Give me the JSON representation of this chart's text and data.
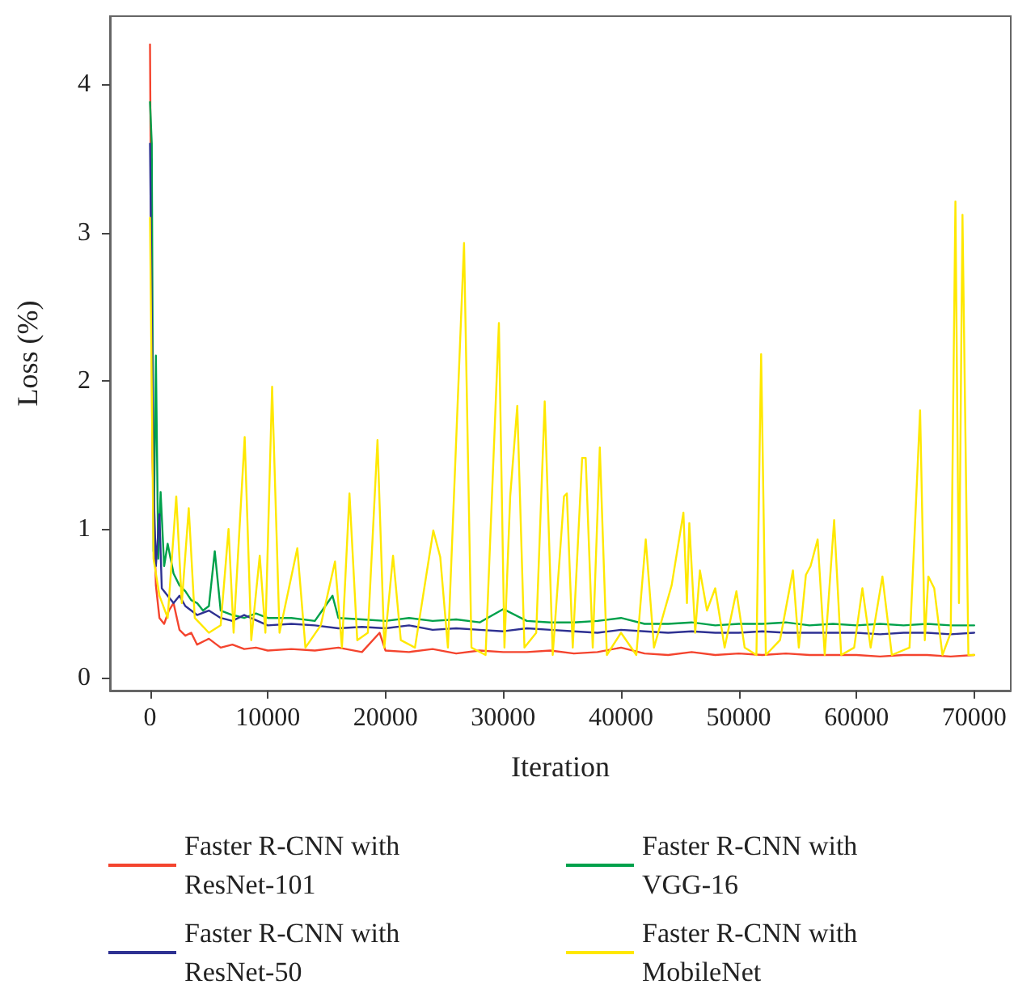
{
  "chart_data": {
    "type": "line",
    "xlabel": "Iteration",
    "ylabel": "Loss (%)",
    "xlim": [
      -3400,
      73100
    ],
    "ylim": [
      -0.09,
      4.46
    ],
    "xticks": [
      0,
      10000,
      20000,
      30000,
      40000,
      50000,
      60000,
      70000
    ],
    "yticks": [
      0,
      1,
      2,
      3,
      4
    ],
    "grid": false,
    "legend": "bottom",
    "marker": "none",
    "line_style": "solid",
    "series": [
      {
        "name": "Faster R-CNN with ResNet-101",
        "color": "#f4442e",
        "x": [
          0,
          200,
          500,
          800,
          1200,
          1600,
          2000,
          2500,
          3000,
          3500,
          4000,
          5000,
          6000,
          7000,
          8000,
          9000,
          10000,
          12000,
          14000,
          16000,
          18000,
          19500,
          20000,
          22000,
          24000,
          26000,
          28000,
          30000,
          32000,
          34000,
          36000,
          38000,
          40000,
          42000,
          44000,
          46000,
          48000,
          50000,
          52000,
          54000,
          56000,
          58000,
          60000,
          62000,
          64000,
          66000,
          68000,
          70000
        ],
        "values": [
          4.27,
          1.5,
          0.62,
          0.4,
          0.36,
          0.45,
          0.5,
          0.32,
          0.28,
          0.3,
          0.22,
          0.26,
          0.2,
          0.22,
          0.19,
          0.2,
          0.18,
          0.19,
          0.18,
          0.2,
          0.17,
          0.3,
          0.18,
          0.17,
          0.19,
          0.16,
          0.18,
          0.17,
          0.17,
          0.18,
          0.16,
          0.17,
          0.2,
          0.16,
          0.15,
          0.17,
          0.15,
          0.16,
          0.15,
          0.16,
          0.15,
          0.15,
          0.15,
          0.14,
          0.15,
          0.15,
          0.14,
          0.15
        ]
      },
      {
        "name": "Faster R-CNN with VGG-16",
        "color": "#00a14b",
        "x": [
          0,
          150,
          300,
          500,
          700,
          900,
          1200,
          1500,
          2000,
          2500,
          3000,
          3500,
          4000,
          4500,
          5000,
          5500,
          6000,
          7000,
          8000,
          9000,
          10000,
          12000,
          14000,
          15500,
          16000,
          18000,
          20000,
          22000,
          24000,
          26000,
          28000,
          30000,
          32000,
          34000,
          36000,
          38000,
          40000,
          42000,
          44000,
          46000,
          48000,
          50000,
          52000,
          54000,
          56000,
          58000,
          60000,
          62000,
          64000,
          66000,
          68000,
          70000
        ],
        "values": [
          3.88,
          3.6,
          0.85,
          2.17,
          0.8,
          1.25,
          0.75,
          0.9,
          0.7,
          0.62,
          0.58,
          0.52,
          0.5,
          0.45,
          0.48,
          0.85,
          0.45,
          0.42,
          0.4,
          0.43,
          0.4,
          0.4,
          0.38,
          0.55,
          0.4,
          0.39,
          0.38,
          0.4,
          0.38,
          0.39,
          0.37,
          0.46,
          0.38,
          0.37,
          0.37,
          0.38,
          0.4,
          0.36,
          0.36,
          0.37,
          0.35,
          0.36,
          0.36,
          0.37,
          0.35,
          0.36,
          0.35,
          0.36,
          0.35,
          0.36,
          0.35,
          0.35
        ]
      },
      {
        "name": "Faster R-CNN with ResNet-50",
        "color": "#2e3192",
        "x": [
          0,
          300,
          500,
          800,
          1000,
          1500,
          2000,
          2500,
          3000,
          4000,
          5000,
          6000,
          7000,
          8000,
          10000,
          12000,
          14000,
          16000,
          18000,
          20000,
          22000,
          24000,
          26000,
          28000,
          30000,
          32000,
          34000,
          36000,
          38000,
          40000,
          42000,
          44000,
          46000,
          48000,
          50000,
          52000,
          54000,
          56000,
          58000,
          60000,
          62000,
          64000,
          66000,
          68000,
          70000
        ],
        "values": [
          3.6,
          1.3,
          0.75,
          1.1,
          0.6,
          0.55,
          0.5,
          0.55,
          0.48,
          0.42,
          0.45,
          0.4,
          0.38,
          0.42,
          0.35,
          0.36,
          0.35,
          0.33,
          0.34,
          0.33,
          0.35,
          0.32,
          0.33,
          0.32,
          0.31,
          0.33,
          0.32,
          0.31,
          0.3,
          0.32,
          0.31,
          0.3,
          0.31,
          0.3,
          0.3,
          0.31,
          0.3,
          0.3,
          0.3,
          0.3,
          0.29,
          0.3,
          0.3,
          0.29,
          0.3
        ]
      },
      {
        "name": "Faster R-CNN with MobileNet",
        "color": "#ffe800",
        "x": [
          0,
          300,
          800,
          1500,
          2230,
          2700,
          3290,
          3800,
          5000,
          6000,
          6670,
          7100,
          8040,
          8600,
          9320,
          9800,
          10370,
          11000,
          12510,
          13200,
          14500,
          15710,
          16300,
          16940,
          17600,
          18500,
          19320,
          19900,
          20640,
          21300,
          22500,
          24060,
          24650,
          25300,
          26670,
          27300,
          28500,
          29630,
          30100,
          30590,
          31190,
          31800,
          32800,
          33520,
          34200,
          35160,
          35400,
          35900,
          36700,
          37000,
          37600,
          38200,
          38800,
          40000,
          41300,
          42100,
          42800,
          44300,
          45300,
          45600,
          45800,
          46300,
          46700,
          47300,
          48000,
          48800,
          49800,
          50500,
          51500,
          51900,
          52300,
          53500,
          54600,
          55100,
          55700,
          56100,
          56700,
          57300,
          58100,
          58700,
          59800,
          60500,
          61200,
          62200,
          63000,
          64500,
          65400,
          65800,
          66100,
          66600,
          67300,
          68000,
          68400,
          68700,
          69000,
          69500,
          70000
        ],
        "values": [
          3.1,
          0.8,
          0.55,
          0.4,
          1.22,
          0.5,
          1.14,
          0.4,
          0.3,
          0.35,
          1.0,
          0.3,
          1.62,
          0.25,
          0.82,
          0.3,
          1.96,
          0.3,
          0.87,
          0.2,
          0.35,
          0.78,
          0.2,
          1.24,
          0.25,
          0.3,
          1.6,
          0.2,
          0.82,
          0.25,
          0.2,
          0.99,
          0.81,
          0.2,
          2.93,
          0.2,
          0.15,
          2.39,
          0.2,
          1.22,
          1.83,
          0.2,
          0.3,
          1.86,
          0.15,
          1.22,
          1.24,
          0.2,
          1.48,
          1.48,
          0.2,
          1.55,
          0.15,
          0.3,
          0.15,
          0.93,
          0.2,
          0.62,
          1.11,
          0.5,
          1.04,
          0.3,
          0.72,
          0.45,
          0.6,
          0.2,
          0.58,
          0.2,
          0.15,
          2.18,
          0.15,
          0.25,
          0.72,
          0.2,
          0.69,
          0.75,
          0.93,
          0.15,
          1.06,
          0.15,
          0.2,
          0.6,
          0.2,
          0.68,
          0.15,
          0.2,
          1.8,
          0.25,
          0.68,
          0.6,
          0.15,
          0.3,
          3.21,
          0.5,
          3.12,
          0.15,
          0.15
        ]
      }
    ]
  }
}
